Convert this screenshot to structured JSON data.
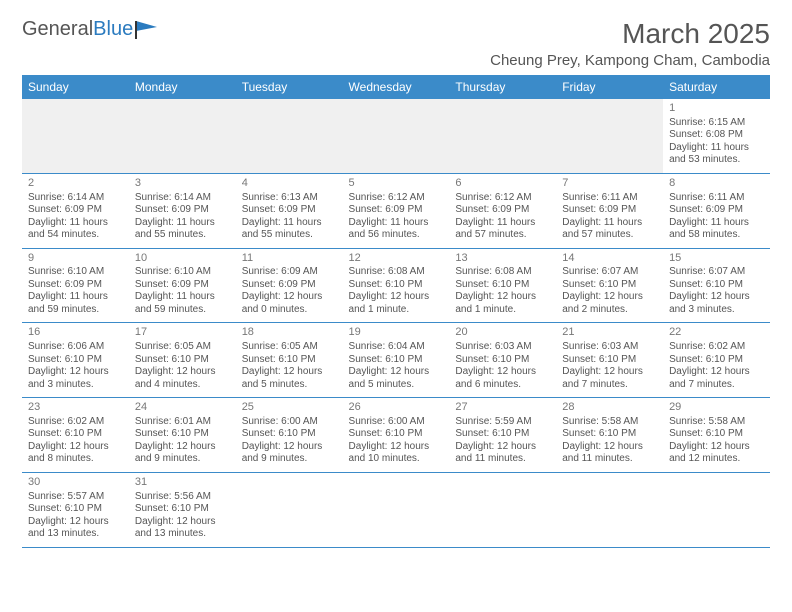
{
  "logo": {
    "general": "General",
    "blue": "Blue"
  },
  "header": {
    "month_title": "March 2025",
    "location": "Cheung Prey, Kampong Cham, Cambodia"
  },
  "colors": {
    "header_bg": "#3b8bc9",
    "header_text": "#ffffff",
    "row_border": "#3b8bc9",
    "text": "#555555",
    "blank_bg": "#f0f0f0"
  },
  "daynames": [
    "Sunday",
    "Monday",
    "Tuesday",
    "Wednesday",
    "Thursday",
    "Friday",
    "Saturday"
  ],
  "weeks": [
    [
      null,
      null,
      null,
      null,
      null,
      null,
      {
        "n": "1",
        "sr": "6:15 AM",
        "ss": "6:08 PM",
        "dl": "11 hours and 53 minutes."
      }
    ],
    [
      {
        "n": "2",
        "sr": "6:14 AM",
        "ss": "6:09 PM",
        "dl": "11 hours and 54 minutes."
      },
      {
        "n": "3",
        "sr": "6:14 AM",
        "ss": "6:09 PM",
        "dl": "11 hours and 55 minutes."
      },
      {
        "n": "4",
        "sr": "6:13 AM",
        "ss": "6:09 PM",
        "dl": "11 hours and 55 minutes."
      },
      {
        "n": "5",
        "sr": "6:12 AM",
        "ss": "6:09 PM",
        "dl": "11 hours and 56 minutes."
      },
      {
        "n": "6",
        "sr": "6:12 AM",
        "ss": "6:09 PM",
        "dl": "11 hours and 57 minutes."
      },
      {
        "n": "7",
        "sr": "6:11 AM",
        "ss": "6:09 PM",
        "dl": "11 hours and 57 minutes."
      },
      {
        "n": "8",
        "sr": "6:11 AM",
        "ss": "6:09 PM",
        "dl": "11 hours and 58 minutes."
      }
    ],
    [
      {
        "n": "9",
        "sr": "6:10 AM",
        "ss": "6:09 PM",
        "dl": "11 hours and 59 minutes."
      },
      {
        "n": "10",
        "sr": "6:10 AM",
        "ss": "6:09 PM",
        "dl": "11 hours and 59 minutes."
      },
      {
        "n": "11",
        "sr": "6:09 AM",
        "ss": "6:09 PM",
        "dl": "12 hours and 0 minutes."
      },
      {
        "n": "12",
        "sr": "6:08 AM",
        "ss": "6:10 PM",
        "dl": "12 hours and 1 minute."
      },
      {
        "n": "13",
        "sr": "6:08 AM",
        "ss": "6:10 PM",
        "dl": "12 hours and 1 minute."
      },
      {
        "n": "14",
        "sr": "6:07 AM",
        "ss": "6:10 PM",
        "dl": "12 hours and 2 minutes."
      },
      {
        "n": "15",
        "sr": "6:07 AM",
        "ss": "6:10 PM",
        "dl": "12 hours and 3 minutes."
      }
    ],
    [
      {
        "n": "16",
        "sr": "6:06 AM",
        "ss": "6:10 PM",
        "dl": "12 hours and 3 minutes."
      },
      {
        "n": "17",
        "sr": "6:05 AM",
        "ss": "6:10 PM",
        "dl": "12 hours and 4 minutes."
      },
      {
        "n": "18",
        "sr": "6:05 AM",
        "ss": "6:10 PM",
        "dl": "12 hours and 5 minutes."
      },
      {
        "n": "19",
        "sr": "6:04 AM",
        "ss": "6:10 PM",
        "dl": "12 hours and 5 minutes."
      },
      {
        "n": "20",
        "sr": "6:03 AM",
        "ss": "6:10 PM",
        "dl": "12 hours and 6 minutes."
      },
      {
        "n": "21",
        "sr": "6:03 AM",
        "ss": "6:10 PM",
        "dl": "12 hours and 7 minutes."
      },
      {
        "n": "22",
        "sr": "6:02 AM",
        "ss": "6:10 PM",
        "dl": "12 hours and 7 minutes."
      }
    ],
    [
      {
        "n": "23",
        "sr": "6:02 AM",
        "ss": "6:10 PM",
        "dl": "12 hours and 8 minutes."
      },
      {
        "n": "24",
        "sr": "6:01 AM",
        "ss": "6:10 PM",
        "dl": "12 hours and 9 minutes."
      },
      {
        "n": "25",
        "sr": "6:00 AM",
        "ss": "6:10 PM",
        "dl": "12 hours and 9 minutes."
      },
      {
        "n": "26",
        "sr": "6:00 AM",
        "ss": "6:10 PM",
        "dl": "12 hours and 10 minutes."
      },
      {
        "n": "27",
        "sr": "5:59 AM",
        "ss": "6:10 PM",
        "dl": "12 hours and 11 minutes."
      },
      {
        "n": "28",
        "sr": "5:58 AM",
        "ss": "6:10 PM",
        "dl": "12 hours and 11 minutes."
      },
      {
        "n": "29",
        "sr": "5:58 AM",
        "ss": "6:10 PM",
        "dl": "12 hours and 12 minutes."
      }
    ],
    [
      {
        "n": "30",
        "sr": "5:57 AM",
        "ss": "6:10 PM",
        "dl": "12 hours and 13 minutes."
      },
      {
        "n": "31",
        "sr": "5:56 AM",
        "ss": "6:10 PM",
        "dl": "12 hours and 13 minutes."
      },
      null,
      null,
      null,
      null,
      null
    ]
  ],
  "labels": {
    "sunrise": "Sunrise:",
    "sunset": "Sunset:",
    "daylight": "Daylight:"
  }
}
